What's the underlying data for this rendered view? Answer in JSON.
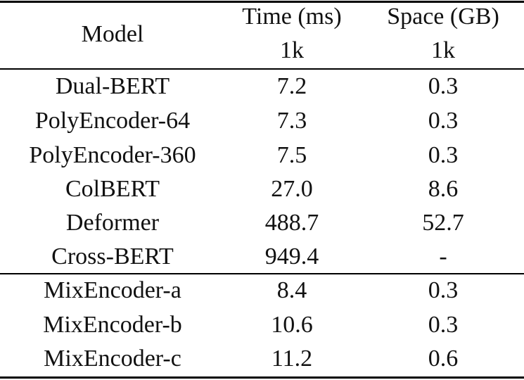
{
  "header": {
    "model": "Model",
    "time": "Time (ms)",
    "space": "Space (GB)",
    "time_sub": "1k",
    "space_sub": "1k"
  },
  "rows": [
    {
      "model": "Dual-BERT",
      "time": "7.2",
      "space": "0.3"
    },
    {
      "model": "PolyEncoder-64",
      "time": "7.3",
      "space": "0.3"
    },
    {
      "model": "PolyEncoder-360",
      "time": "7.5",
      "space": "0.3"
    },
    {
      "model": "ColBERT",
      "time": "27.0",
      "space": "8.6"
    },
    {
      "model": "Deformer",
      "time": "488.7",
      "space": "52.7"
    },
    {
      "model": "Cross-BERT",
      "time": "949.4",
      "space": "-"
    },
    {
      "model": "MixEncoder-a",
      "time": "8.4",
      "space": "0.3"
    },
    {
      "model": "MixEncoder-b",
      "time": "10.6",
      "space": "0.3"
    },
    {
      "model": "MixEncoder-c",
      "time": "11.2",
      "space": "0.6"
    }
  ]
}
